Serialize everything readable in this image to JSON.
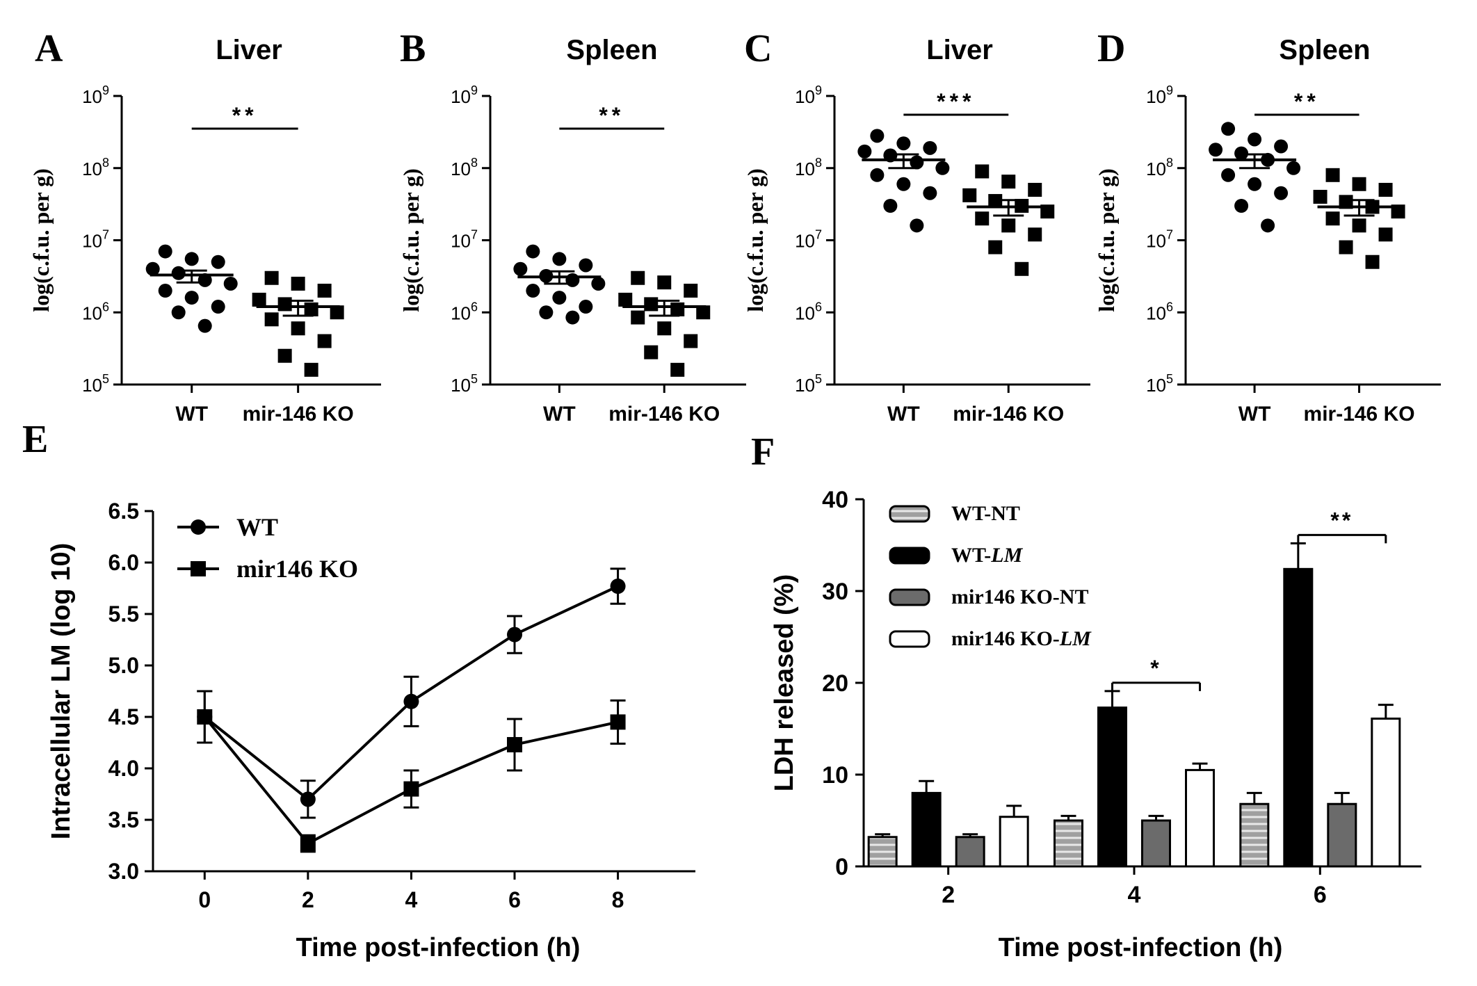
{
  "chart_data": [
    {
      "panel": "A",
      "type": "scatter",
      "title": "Liver",
      "ylabel": "log(c.f.u. per g)",
      "yscale": "log",
      "ylim": [
        100000,
        1000000000
      ],
      "yticks": [
        "5",
        "6",
        "7",
        "8",
        "9"
      ],
      "categories": [
        "WT",
        "mir-146 KO"
      ],
      "series": [
        {
          "name": "WT",
          "marker": "circle",
          "points": [
            7000000.0,
            5500000.0,
            5000000.0,
            4000000.0,
            3500000.0,
            2800000.0,
            2500000.0,
            2000000.0,
            1600000.0,
            1200000.0,
            1000000.0,
            650000.0
          ],
          "mean": 3300000.0,
          "sem_low": 2600000.0,
          "sem_high": 3800000.0
        },
        {
          "name": "mir-146 KO",
          "marker": "square",
          "points": [
            3000000.0,
            2500000.0,
            2000000.0,
            1500000.0,
            1300000.0,
            1100000.0,
            1000000.0,
            800000.0,
            600000.0,
            400000.0,
            250000.0,
            160000.0
          ],
          "mean": 1200000.0,
          "sem_low": 900000.0,
          "sem_high": 1450000.0
        }
      ],
      "significance": "**"
    },
    {
      "panel": "B",
      "type": "scatter",
      "title": "Spleen",
      "ylabel": "log(c.f.u. per g)",
      "yscale": "log",
      "ylim": [
        100000,
        1000000000
      ],
      "yticks": [
        "5",
        "6",
        "7",
        "8",
        "9"
      ],
      "categories": [
        "WT",
        "mir-146 KO"
      ],
      "series": [
        {
          "name": "WT",
          "marker": "circle",
          "points": [
            7000000.0,
            5500000.0,
            4500000.0,
            4000000.0,
            3200000.0,
            2800000.0,
            2500000.0,
            2000000.0,
            1600000.0,
            1200000.0,
            1000000.0,
            850000.0
          ],
          "mean": 3100000.0,
          "sem_low": 2500000.0,
          "sem_high": 3700000.0
        },
        {
          "name": "mir-146 KO",
          "marker": "square",
          "points": [
            3000000.0,
            2600000.0,
            2000000.0,
            1500000.0,
            1300000.0,
            1100000.0,
            1000000.0,
            850000.0,
            600000.0,
            400000.0,
            280000.0,
            160000.0
          ],
          "mean": 1200000.0,
          "sem_low": 900000.0,
          "sem_high": 1450000.0
        }
      ],
      "significance": "**"
    },
    {
      "panel": "C",
      "type": "scatter",
      "title": "Liver",
      "ylabel": "log(c.f.u. per g)",
      "yscale": "log",
      "ylim": [
        100000,
        1000000000
      ],
      "yticks": [
        "5",
        "6",
        "7",
        "8",
        "9"
      ],
      "categories": [
        "WT",
        "mir-146 KO"
      ],
      "series": [
        {
          "name": "WT",
          "marker": "circle",
          "points": [
            280000000.0,
            220000000.0,
            190000000.0,
            170000000.0,
            150000000.0,
            120000000.0,
            100000000.0,
            80000000.0,
            60000000.0,
            45000000.0,
            30000000.0,
            16000000.0
          ],
          "mean": 130000000.0,
          "sem_low": 100000000.0,
          "sem_high": 155000000.0
        },
        {
          "name": "mir-146 KO",
          "marker": "square",
          "points": [
            90000000.0,
            65000000.0,
            50000000.0,
            42000000.0,
            35000000.0,
            30000000.0,
            25000000.0,
            20000000.0,
            16000000.0,
            12000000.0,
            8000000.0,
            4000000.0
          ],
          "mean": 29000000.0,
          "sem_low": 22000000.0,
          "sem_high": 36000000.0
        }
      ],
      "significance": "***"
    },
    {
      "panel": "D",
      "type": "scatter",
      "title": "Spleen",
      "ylabel": "log(c.f.u. per g)",
      "yscale": "log",
      "ylim": [
        100000,
        1000000000
      ],
      "yticks": [
        "5",
        "6",
        "7",
        "8",
        "9"
      ],
      "categories": [
        "WT",
        "mir-146 KO"
      ],
      "series": [
        {
          "name": "WT",
          "marker": "circle",
          "points": [
            350000000.0,
            250000000.0,
            200000000.0,
            180000000.0,
            160000000.0,
            130000000.0,
            100000000.0,
            80000000.0,
            60000000.0,
            45000000.0,
            30000000.0,
            16000000.0
          ],
          "mean": 130000000.0,
          "sem_low": 100000000.0,
          "sem_high": 155000000.0
        },
        {
          "name": "mir-146 KO",
          "marker": "square",
          "points": [
            80000000.0,
            60000000.0,
            50000000.0,
            40000000.0,
            34000000.0,
            29000000.0,
            25000000.0,
            20000000.0,
            16000000.0,
            12000000.0,
            8000000.0,
            5000000.0
          ],
          "mean": 29000000.0,
          "sem_low": 22000000.0,
          "sem_high": 36000000.0
        }
      ],
      "significance": "**"
    },
    {
      "panel": "E",
      "type": "line",
      "xlabel": "Time post-infection (h)",
      "ylabel": "Intracellular LM (log 10)",
      "x": [
        0,
        2,
        4,
        6,
        8
      ],
      "xlim": [
        -1.0,
        9.5
      ],
      "ylim": [
        3.0,
        6.5
      ],
      "xticks": [
        "0",
        "2",
        "4",
        "6",
        "8"
      ],
      "yticks": [
        "3.0",
        "3.5",
        "4.0",
        "4.5",
        "5.0",
        "5.5",
        "6.0",
        "6.5"
      ],
      "legend_position": "top-left",
      "series": [
        {
          "name": "WT",
          "marker": "circle",
          "values": [
            4.5,
            3.7,
            4.65,
            5.3,
            5.77
          ],
          "errors": [
            0.25,
            0.18,
            0.24,
            0.18,
            0.17
          ]
        },
        {
          "name": "mir146 KO",
          "marker": "square",
          "values": [
            4.5,
            3.27,
            3.8,
            4.23,
            4.45
          ],
          "errors": [
            0.25,
            0.08,
            0.18,
            0.25,
            0.21
          ]
        }
      ]
    },
    {
      "panel": "F",
      "type": "bar",
      "xlabel": "Time post-infection (h)",
      "ylabel": "LDH released (%)",
      "categories": [
        "2",
        "4",
        "6"
      ],
      "ylim": [
        0,
        40
      ],
      "yticks": [
        "0",
        "10",
        "20",
        "30",
        "40"
      ],
      "legend_position": "top-left",
      "series": [
        {
          "name": "WT-NT",
          "name_prefix": "WT-NT",
          "name_italic": "",
          "fill": "#a0a0a0",
          "style": "striped",
          "values": [
            3.2,
            5.0,
            6.8
          ],
          "errors": [
            0.3,
            0.5,
            1.2
          ]
        },
        {
          "name": "WT-LM",
          "name_prefix": "WT-",
          "name_italic": "LM",
          "fill": "#000000",
          "style": "solid",
          "values": [
            8.0,
            17.3,
            32.4
          ],
          "errors": [
            1.3,
            1.8,
            2.8
          ]
        },
        {
          "name": "mir146 KO-NT",
          "name_prefix": "mir146 KO-NT",
          "name_italic": "",
          "fill": "#6b6b6b",
          "style": "solid",
          "values": [
            3.2,
            5.0,
            6.8
          ],
          "errors": [
            0.3,
            0.5,
            1.2
          ]
        },
        {
          "name": "mir146 KO-LM",
          "name_prefix": "mir146 KO-",
          "name_italic": "LM",
          "fill": "#ffffff",
          "style": "open",
          "values": [
            5.4,
            10.5,
            16.1
          ],
          "errors": [
            1.2,
            0.7,
            1.5
          ]
        }
      ],
      "significance": [
        {
          "category": "4",
          "label": "*"
        },
        {
          "category": "6",
          "label": "**"
        }
      ]
    }
  ]
}
